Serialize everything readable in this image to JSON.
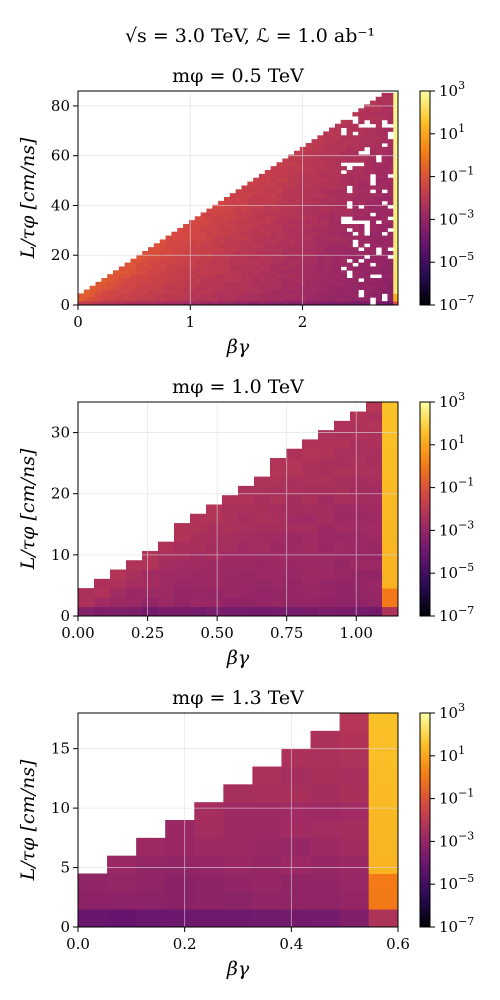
{
  "figure": {
    "suptitle": "√s = 3.0 TeV, ℒ = 1.0 ab⁻¹"
  },
  "colors": {
    "colormap": "inferno",
    "grid": "#dddddd",
    "missing": "#ffffff"
  },
  "chart_data": [
    {
      "type": "heatmap",
      "title": "mφ = 0.5 TeV",
      "xlabel": "βγ",
      "ylabel": "L/τφ [cm/ns]",
      "xlim": [
        0,
        2.85
      ],
      "ylim": [
        0,
        86
      ],
      "xticks": [
        0,
        1,
        2
      ],
      "xtick_labels": [
        "0",
        "1",
        "2"
      ],
      "yticks": [
        0,
        20,
        40,
        60,
        80
      ],
      "ytick_labels": [
        "0",
        "20",
        "40",
        "60",
        "80"
      ],
      "grid": true,
      "nx": 55,
      "ny": 55,
      "bin_width_x": 0.052,
      "bin_width_y": 1.55,
      "colorbar": {
        "scale": "log",
        "range": [
          1e-07,
          1000
        ],
        "ticks": [
          1e-07,
          1e-05,
          0.001,
          0.1,
          10,
          1000
        ],
        "tick_bases": [
          "10",
          "10",
          "10",
          "10",
          "10",
          "10"
        ],
        "tick_exponents": [
          "−7",
          "−5",
          "−3",
          "−1",
          "1",
          "3"
        ]
      },
      "log10_value_at_origin": -0.7,
      "log10_value_at_top_edge": -2.4,
      "log10_value_last_column": 2.4,
      "sparse_from_x": 2.3
    },
    {
      "type": "heatmap",
      "title": "mφ = 1.0 TeV",
      "xlabel": "βγ",
      "ylabel": "L/τφ [cm/ns]",
      "xlim": [
        0,
        1.15
      ],
      "ylim": [
        0,
        35
      ],
      "xticks": [
        0,
        0.25,
        0.5,
        0.75,
        1.0
      ],
      "xtick_labels": [
        "0.00",
        "0.25",
        "0.50",
        "0.75",
        "1.00"
      ],
      "yticks": [
        0,
        10,
        20,
        30
      ],
      "ytick_labels": [
        "0",
        "10",
        "20",
        "30"
      ],
      "grid": true,
      "nx": 20,
      "ny": 23,
      "bin_width_x": 0.0575,
      "bin_width_y": 1.52,
      "colorbar": {
        "scale": "log",
        "range": [
          1e-07,
          1000
        ],
        "ticks": [
          1e-07,
          1e-05,
          0.001,
          0.1,
          10,
          1000
        ],
        "tick_bases": [
          "10",
          "10",
          "10",
          "10",
          "10",
          "10"
        ],
        "tick_exponents": [
          "−7",
          "−5",
          "−3",
          "−1",
          "1",
          "3"
        ]
      },
      "log10_value_at_origin": -2.3,
      "log10_value_at_top_edge": -2.2,
      "log10_value_last_column": 1.2,
      "sparse_from_x": 99
    },
    {
      "type": "heatmap",
      "title": "mφ = 1.3 TeV",
      "xlabel": "βγ",
      "ylabel": "L/τφ [cm/ns]",
      "xlim": [
        0,
        0.6
      ],
      "ylim": [
        0,
        18
      ],
      "xticks": [
        0,
        0.2,
        0.4,
        0.6
      ],
      "xtick_labels": [
        "0.0",
        "0.2",
        "0.4",
        "0.6"
      ],
      "yticks": [
        0,
        5,
        10,
        15
      ],
      "ytick_labels": [
        "0",
        "5",
        "10",
        "15"
      ],
      "grid": true,
      "nx": 11,
      "ny": 12,
      "bin_width_x": 0.0545,
      "bin_width_y": 1.5,
      "colorbar": {
        "scale": "log",
        "range": [
          1e-07,
          1000
        ],
        "ticks": [
          1e-07,
          1e-05,
          0.001,
          0.1,
          10,
          1000
        ],
        "tick_bases": [
          "10",
          "10",
          "10",
          "10",
          "10",
          "10"
        ],
        "tick_exponents": [
          "−7",
          "−5",
          "−3",
          "−1",
          "1",
          "3"
        ]
      },
      "log10_value_at_origin": -3.0,
      "log10_value_at_top_edge": -2.0,
      "log10_value_last_column": 1.2,
      "sparse_from_x": 99
    }
  ]
}
